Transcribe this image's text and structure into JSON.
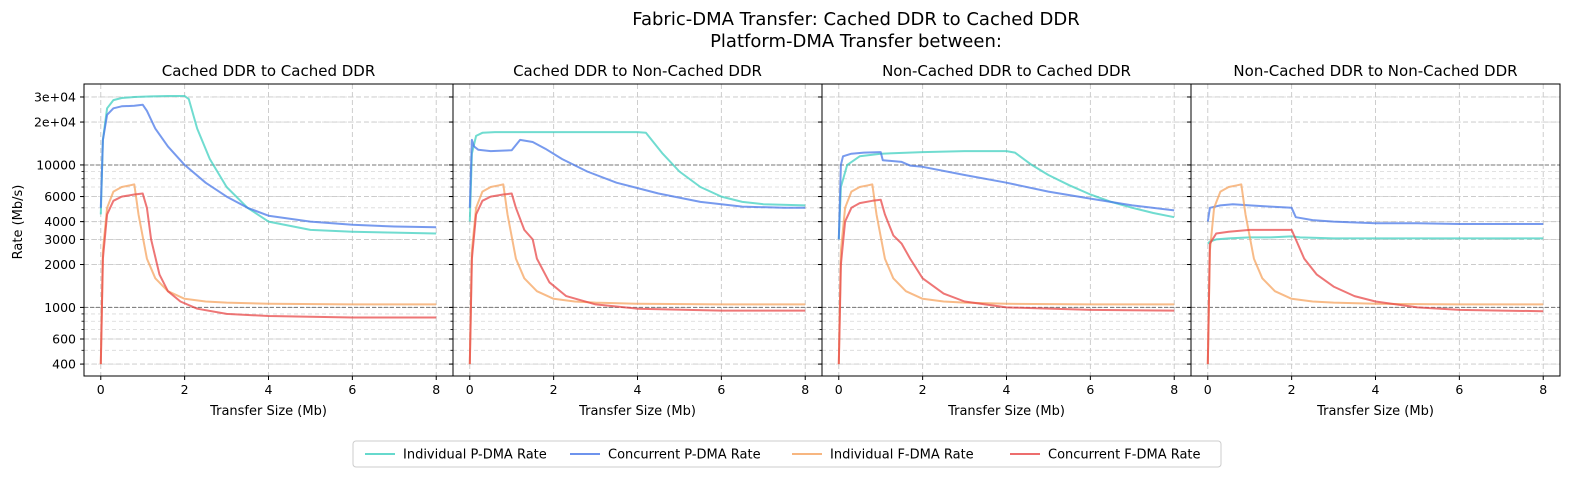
{
  "figure": {
    "suptitle_line1": "Fabric-DMA Transfer: Cached DDR to Cached DDR",
    "suptitle_line2": "Platform-DMA Transfer between:"
  },
  "chart_data": {
    "type": "line",
    "ylabel": "Rate (Mb/s)",
    "yscale": "log",
    "ylim": [
      330,
      37000
    ],
    "xlim": [
      -0.4,
      8.4
    ],
    "xticks": [
      0,
      2,
      4,
      6,
      8
    ],
    "yticks": [
      400,
      600,
      1000,
      2000,
      3000,
      4000,
      6000,
      10000,
      20000,
      30000
    ],
    "ytick_labels": [
      "400",
      "600",
      "1000",
      "2000",
      "3000",
      "4000",
      "6000",
      "10000",
      "2e+04",
      "3e+04"
    ],
    "reference_lines": [
      1000,
      10000
    ],
    "grid": true,
    "legend_position": "bottom-center",
    "legend": [
      "Individual P-DMA Rate",
      "Concurrent P-DMA Rate",
      "Individual F-DMA Rate",
      "Concurrent F-DMA Rate"
    ],
    "colors": {
      "Individual P-DMA Rate": "#40d0c0",
      "Concurrent P-DMA Rate": "#4a78e8",
      "Individual F-DMA Rate": "#f5a460",
      "Concurrent F-DMA Rate": "#e84848"
    },
    "panels": [
      {
        "title": "Cached DDR to Cached DDR",
        "xlabel": "Transfer Size (Mb)",
        "series": [
          {
            "name": "Individual P-DMA Rate",
            "x": [
              0,
              0.05,
              0.15,
              0.3,
              0.5,
              0.8,
              1.2,
              1.6,
              2.0,
              2.1,
              2.3,
              2.6,
              3.0,
              3.5,
              4.0,
              5.0,
              6.0,
              7.0,
              8.0
            ],
            "y": [
              4500,
              15000,
              25000,
              28500,
              29500,
              30000,
              30300,
              30500,
              30500,
              29000,
              18000,
              11000,
              7000,
              5000,
              4000,
              3500,
              3400,
              3350,
              3300
            ]
          },
          {
            "name": "Concurrent P-DMA Rate",
            "x": [
              0,
              0.05,
              0.15,
              0.3,
              0.5,
              0.8,
              1.0,
              1.1,
              1.3,
              1.6,
              2.0,
              2.5,
              3.0,
              3.5,
              4.0,
              5.0,
              6.0,
              7.0,
              8.0
            ],
            "y": [
              5000,
              15000,
              22500,
              25000,
              25800,
              26000,
              26500,
              24000,
              18000,
              13500,
              10000,
              7500,
              6000,
              5000,
              4400,
              4000,
              3800,
              3700,
              3650
            ]
          },
          {
            "name": "Individual F-DMA Rate",
            "x": [
              0,
              0.05,
              0.15,
              0.3,
              0.5,
              0.7,
              0.8,
              0.9,
              1.1,
              1.3,
              1.6,
              2.0,
              2.5,
              3.0,
              4.0,
              6.0,
              8.0
            ],
            "y": [
              400,
              2500,
              5000,
              6500,
              7000,
              7200,
              7300,
              4500,
              2200,
              1600,
              1300,
              1150,
              1100,
              1080,
              1060,
              1050,
              1050
            ]
          },
          {
            "name": "Concurrent F-DMA Rate",
            "x": [
              0,
              0.05,
              0.15,
              0.3,
              0.5,
              0.8,
              1.0,
              1.1,
              1.2,
              1.4,
              1.6,
              1.9,
              2.3,
              3.0,
              4.0,
              6.0,
              8.0
            ],
            "y": [
              400,
              2200,
              4500,
              5600,
              6000,
              6200,
              6300,
              5000,
              3000,
              1700,
              1300,
              1100,
              980,
              900,
              870,
              850,
              850
            ]
          }
        ]
      },
      {
        "title": "Cached DDR to Non-Cached DDR",
        "xlabel": "Transfer Size (Mb)",
        "series": [
          {
            "name": "Individual P-DMA Rate",
            "x": [
              0,
              0.05,
              0.15,
              0.3,
              0.6,
              1.0,
              2.0,
              3.0,
              4.0,
              4.2,
              4.6,
              5.0,
              5.5,
              6.0,
              6.5,
              7.0,
              8.0
            ],
            "y": [
              4000,
              12000,
              16000,
              16800,
              17000,
              17000,
              17000,
              17000,
              17000,
              16800,
              12000,
              9000,
              7000,
              6000,
              5500,
              5300,
              5200
            ]
          },
          {
            "name": "Concurrent P-DMA Rate",
            "x": [
              0,
              0.05,
              0.1,
              0.2,
              0.5,
              1.0,
              1.2,
              1.5,
              1.8,
              2.2,
              2.8,
              3.5,
              4.5,
              5.5,
              6.5,
              7.5,
              8.0
            ],
            "y": [
              5000,
              15000,
              13500,
              12800,
              12500,
              12700,
              15000,
              14500,
              13000,
              11000,
              9000,
              7500,
              6300,
              5500,
              5100,
              5000,
              5000
            ]
          },
          {
            "name": "Individual F-DMA Rate",
            "x": [
              0,
              0.05,
              0.15,
              0.3,
              0.5,
              0.7,
              0.8,
              0.9,
              1.1,
              1.3,
              1.6,
              2.0,
              2.5,
              3.0,
              4.0,
              6.0,
              8.0
            ],
            "y": [
              400,
              2500,
              5000,
              6500,
              7000,
              7200,
              7300,
              4500,
              2200,
              1600,
              1300,
              1150,
              1100,
              1080,
              1060,
              1050,
              1050
            ]
          },
          {
            "name": "Concurrent F-DMA Rate",
            "x": [
              0,
              0.05,
              0.15,
              0.3,
              0.5,
              0.8,
              1.0,
              1.1,
              1.3,
              1.5,
              1.6,
              1.9,
              2.3,
              3.0,
              4.0,
              6.0,
              8.0
            ],
            "y": [
              400,
              2200,
              4500,
              5600,
              6000,
              6200,
              6300,
              5000,
              3500,
              3000,
              2200,
              1500,
              1200,
              1050,
              980,
              950,
              950
            ]
          }
        ]
      },
      {
        "title": "Non-Cached DDR to Cached DDR",
        "xlabel": "Transfer Size (Mb)",
        "series": [
          {
            "name": "Individual P-DMA Rate",
            "x": [
              0,
              0.05,
              0.2,
              0.5,
              1.0,
              2.0,
              3.0,
              4.0,
              4.2,
              4.6,
              5.0,
              5.5,
              6.0,
              6.5,
              7.0,
              7.5,
              8.0
            ],
            "y": [
              3000,
              7000,
              10000,
              11500,
              12000,
              12300,
              12500,
              12500,
              12200,
              10000,
              8500,
              7200,
              6200,
              5500,
              5000,
              4600,
              4300
            ]
          },
          {
            "name": "Concurrent P-DMA Rate",
            "x": [
              0,
              0.05,
              0.1,
              0.3,
              0.6,
              1.0,
              1.05,
              1.5,
              1.7,
              2.0,
              3.0,
              4.0,
              5.0,
              6.0,
              7.0,
              8.0
            ],
            "y": [
              3000,
              10000,
              11500,
              12000,
              12200,
              12300,
              10800,
              10500,
              9900,
              9700,
              8500,
              7500,
              6500,
              5800,
              5200,
              4800
            ]
          },
          {
            "name": "Individual F-DMA Rate",
            "x": [
              0,
              0.05,
              0.15,
              0.3,
              0.5,
              0.7,
              0.8,
              0.9,
              1.1,
              1.3,
              1.6,
              2.0,
              2.5,
              3.0,
              4.0,
              6.0,
              8.0
            ],
            "y": [
              400,
              2500,
              5000,
              6500,
              7000,
              7200,
              7300,
              4500,
              2200,
              1600,
              1300,
              1150,
              1100,
              1080,
              1060,
              1050,
              1050
            ]
          },
          {
            "name": "Concurrent F-DMA Rate",
            "x": [
              0,
              0.05,
              0.15,
              0.3,
              0.5,
              0.8,
              1.0,
              1.1,
              1.3,
              1.5,
              1.7,
              2.0,
              2.5,
              3.0,
              4.0,
              6.0,
              8.0
            ],
            "y": [
              400,
              2000,
              4000,
              5000,
              5400,
              5600,
              5700,
              4500,
              3200,
              2800,
              2200,
              1600,
              1250,
              1100,
              1000,
              960,
              950
            ]
          }
        ]
      },
      {
        "title": "Non-Cached DDR to Non-Cached DDR",
        "xlabel": "Transfer Size (Mb)",
        "series": [
          {
            "name": "Individual P-DMA Rate",
            "x": [
              0,
              0.05,
              0.2,
              0.5,
              1.0,
              1.5,
              2.0,
              2.2,
              3.0,
              4.0,
              5.0,
              6.0,
              7.0,
              8.0
            ],
            "y": [
              2800,
              2900,
              3000,
              3050,
              3100,
              3100,
              3150,
              3100,
              3050,
              3050,
              3050,
              3050,
              3050,
              3050
            ]
          },
          {
            "name": "Concurrent P-DMA Rate",
            "x": [
              0,
              0.05,
              0.3,
              0.6,
              1.0,
              1.5,
              2.0,
              2.1,
              2.5,
              3.0,
              4.0,
              5.0,
              6.0,
              7.0,
              8.0
            ],
            "y": [
              4000,
              5000,
              5200,
              5300,
              5200,
              5100,
              5000,
              4300,
              4100,
              4000,
              3900,
              3900,
              3850,
              3850,
              3850
            ]
          },
          {
            "name": "Individual F-DMA Rate",
            "x": [
              0,
              0.05,
              0.15,
              0.3,
              0.5,
              0.7,
              0.8,
              0.9,
              1.1,
              1.3,
              1.6,
              2.0,
              2.5,
              3.0,
              4.0,
              6.0,
              8.0
            ],
            "y": [
              400,
              2500,
              5000,
              6500,
              7000,
              7200,
              7300,
              4500,
              2200,
              1600,
              1300,
              1150,
              1100,
              1080,
              1060,
              1050,
              1050
            ]
          },
          {
            "name": "Concurrent F-DMA Rate",
            "x": [
              0,
              0.05,
              0.2,
              0.5,
              1.0,
              1.5,
              2.0,
              2.1,
              2.3,
              2.6,
              3.0,
              3.5,
              4.0,
              5.0,
              6.0,
              7.0,
              8.0
            ],
            "y": [
              400,
              2800,
              3300,
              3400,
              3500,
              3500,
              3500,
              3000,
              2200,
              1700,
              1400,
              1200,
              1100,
              1000,
              960,
              950,
              940
            ]
          }
        ]
      }
    ]
  }
}
